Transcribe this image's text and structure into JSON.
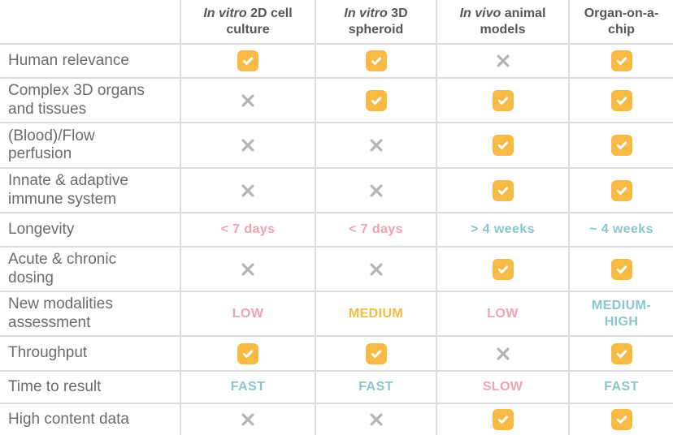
{
  "colors": {
    "orange": "#f7ba45",
    "pink": "#f1a3af",
    "teal": "#89c7cb",
    "cross": "#b4b4b7",
    "header_text": "#55565a",
    "label_text": "#6a6b6e",
    "border": "#dcdcdc",
    "check_mark": "#ffffff"
  },
  "table": {
    "headers": [
      {
        "italic": "",
        "label": ""
      },
      {
        "italic": "In vitro",
        "label": " 2D cell culture"
      },
      {
        "italic": "In vitro",
        "label": " 3D spheroid"
      },
      {
        "italic": "In vivo",
        "label": " animal models"
      },
      {
        "italic": "",
        "label": "Organ-on-a-chip"
      }
    ],
    "rows": [
      {
        "label": "Human relevance",
        "cells": [
          {
            "type": "check"
          },
          {
            "type": "check"
          },
          {
            "type": "cross"
          },
          {
            "type": "check"
          }
        ]
      },
      {
        "label": "Complex 3D organs and tissues",
        "cells": [
          {
            "type": "cross"
          },
          {
            "type": "check"
          },
          {
            "type": "check"
          },
          {
            "type": "check"
          }
        ]
      },
      {
        "label": "(Blood)/Flow perfusion",
        "cells": [
          {
            "type": "cross"
          },
          {
            "type": "cross"
          },
          {
            "type": "check"
          },
          {
            "type": "check"
          }
        ]
      },
      {
        "label": "Innate & adaptive immune system",
        "cells": [
          {
            "type": "cross"
          },
          {
            "type": "cross"
          },
          {
            "type": "check"
          },
          {
            "type": "check"
          }
        ]
      },
      {
        "label": "Longevity",
        "cells": [
          {
            "type": "text",
            "value": "< 7 days",
            "color": "pink"
          },
          {
            "type": "text",
            "value": "< 7 days",
            "color": "pink"
          },
          {
            "type": "text",
            "value": "> 4 weeks",
            "color": "teal"
          },
          {
            "type": "text",
            "value": "~ 4 weeks",
            "color": "teal"
          }
        ]
      },
      {
        "label": "Acute & chronic dosing",
        "cells": [
          {
            "type": "cross"
          },
          {
            "type": "cross"
          },
          {
            "type": "check"
          },
          {
            "type": "check"
          }
        ]
      },
      {
        "label": "New modalities assessment",
        "cells": [
          {
            "type": "text",
            "value": "LOW",
            "color": "pink"
          },
          {
            "type": "text",
            "value": "MEDIUM",
            "color": "orange"
          },
          {
            "type": "text",
            "value": "LOW",
            "color": "pink"
          },
          {
            "type": "text",
            "value": "MEDIUM-HIGH",
            "color": "teal"
          }
        ]
      },
      {
        "label": "Throughput",
        "cells": [
          {
            "type": "check"
          },
          {
            "type": "check"
          },
          {
            "type": "cross"
          },
          {
            "type": "check"
          }
        ]
      },
      {
        "label": "Time to result",
        "cells": [
          {
            "type": "text",
            "value": "FAST",
            "color": "teal"
          },
          {
            "type": "text",
            "value": "FAST",
            "color": "teal"
          },
          {
            "type": "text",
            "value": "SLOW",
            "color": "pink"
          },
          {
            "type": "text",
            "value": "FAST",
            "color": "teal"
          }
        ]
      },
      {
        "label": "High content data",
        "cells": [
          {
            "type": "cross"
          },
          {
            "type": "cross"
          },
          {
            "type": "check"
          },
          {
            "type": "check"
          }
        ]
      }
    ]
  },
  "chart_data": {
    "type": "table",
    "title": "",
    "columns": [
      "In vitro 2D cell culture",
      "In vitro 3D spheroid",
      "In vivo animal models",
      "Organ-on-a-chip"
    ],
    "rows": [
      {
        "feature": "Human relevance",
        "values": [
          "yes",
          "yes",
          "no",
          "yes"
        ]
      },
      {
        "feature": "Complex 3D organs and tissues",
        "values": [
          "no",
          "yes",
          "yes",
          "yes"
        ]
      },
      {
        "feature": "(Blood)/Flow perfusion",
        "values": [
          "no",
          "no",
          "yes",
          "yes"
        ]
      },
      {
        "feature": "Innate & adaptive immune system",
        "values": [
          "no",
          "no",
          "yes",
          "yes"
        ]
      },
      {
        "feature": "Longevity",
        "values": [
          "< 7 days",
          "< 7 days",
          "> 4 weeks",
          "~ 4 weeks"
        ]
      },
      {
        "feature": "Acute & chronic dosing",
        "values": [
          "no",
          "no",
          "yes",
          "yes"
        ]
      },
      {
        "feature": "New modalities assessment",
        "values": [
          "LOW",
          "MEDIUM",
          "LOW",
          "MEDIUM-HIGH"
        ]
      },
      {
        "feature": "Throughput",
        "values": [
          "yes",
          "yes",
          "no",
          "yes"
        ]
      },
      {
        "feature": "Time to result",
        "values": [
          "FAST",
          "FAST",
          "SLOW",
          "FAST"
        ]
      },
      {
        "feature": "High content data",
        "values": [
          "no",
          "no",
          "yes",
          "yes"
        ]
      }
    ]
  }
}
